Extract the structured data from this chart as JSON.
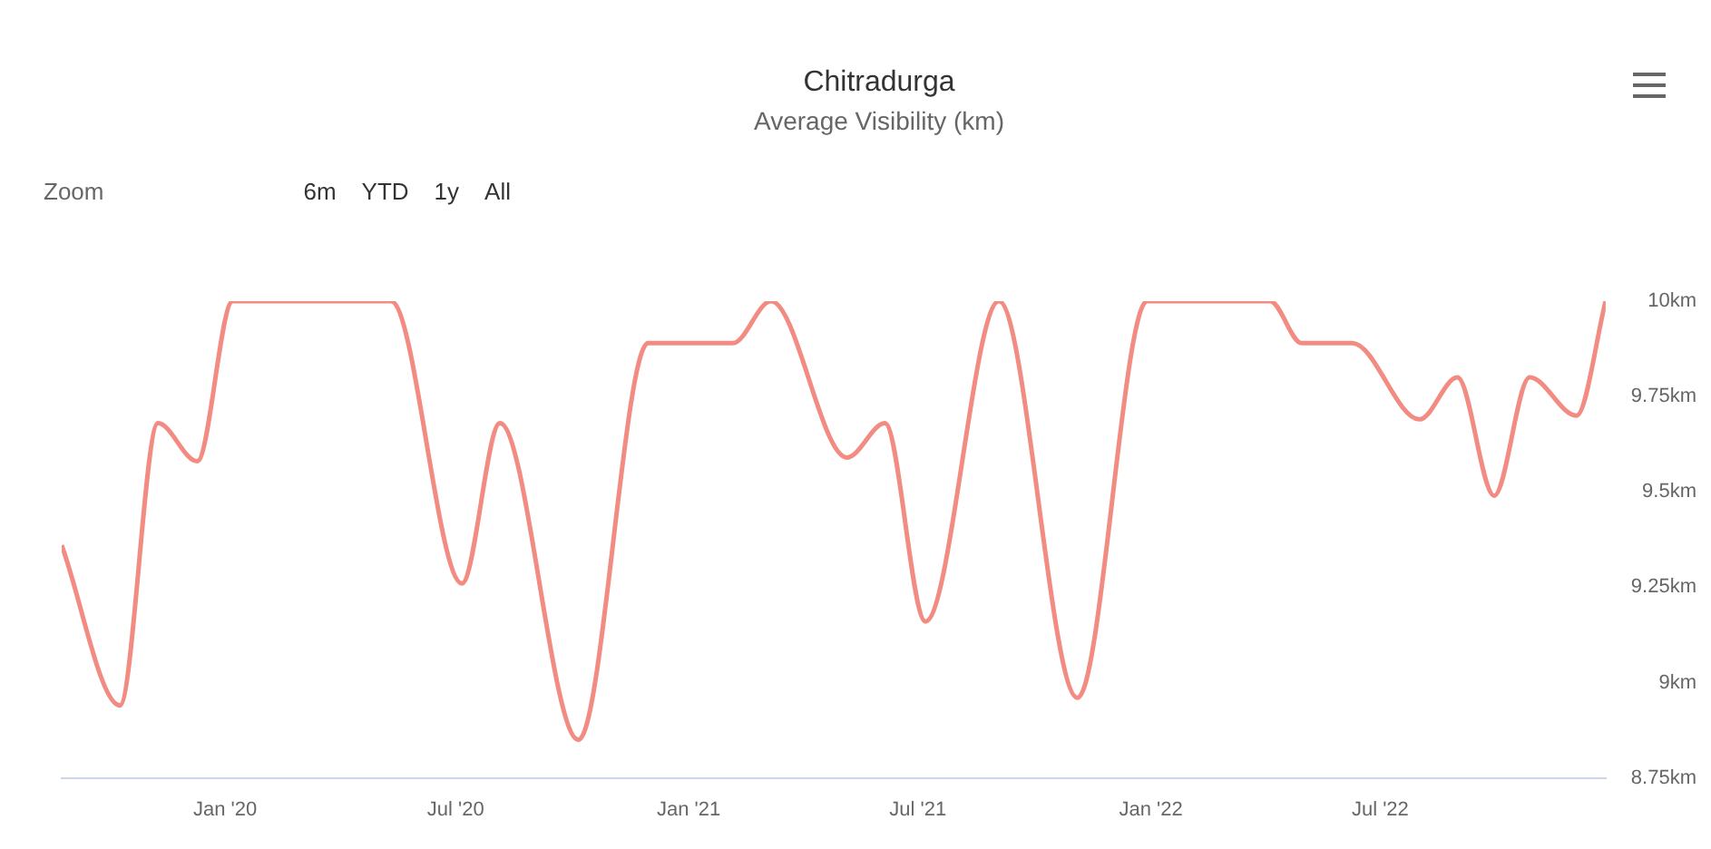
{
  "chart_data": {
    "type": "line",
    "title": "Chitradurga",
    "subtitle": "Average Visibility (km)",
    "annotations": [
      "Zoom",
      "6m",
      "YTD",
      "1y",
      "All"
    ],
    "x": [
      "2019-08-25",
      "2019-10-10",
      "2019-11-09",
      "2019-12-10",
      "2020-01-07",
      "2020-05-11",
      "2020-07-06",
      "2020-08-05",
      "2020-10-06",
      "2020-11-30",
      "2021-02-05",
      "2021-03-07",
      "2021-05-06",
      "2021-06-05",
      "2021-07-07",
      "2021-09-03",
      "2021-11-04",
      "2021-12-29",
      "2022-04-05",
      "2022-04-30",
      "2022-06-09",
      "2022-08-01",
      "2022-08-31",
      "2022-09-29",
      "2022-10-27",
      "2022-12-03",
      "2022-12-26"
    ],
    "series": [
      {
        "color": "#f28b82",
        "values": [
          9.36,
          8.94,
          9.68,
          9.58,
          10,
          10,
          9.26,
          9.68,
          8.85,
          9.89,
          9.89,
          10,
          9.59,
          9.68,
          9.16,
          10,
          8.96,
          10,
          10,
          9.89,
          9.89,
          9.69,
          9.8,
          9.49,
          9.8,
          9.7,
          10
        ]
      }
    ],
    "xticks": [
      {
        "value": "2020-01",
        "label": "Jan '20"
      },
      {
        "value": "2020-07",
        "label": "Jul '20"
      },
      {
        "value": "2021-01",
        "label": "Jan '21"
      },
      {
        "value": "2021-07",
        "label": "Jul '21"
      },
      {
        "value": "2022-01",
        "label": "Jan '22"
      },
      {
        "value": "2022-07",
        "label": "Jul '22"
      }
    ],
    "xlim": [
      "2019-08-25",
      "2022-12-26"
    ],
    "ylim": [
      8.75,
      10
    ],
    "yticks": [
      {
        "value": 8.75,
        "label": "8.75km"
      },
      {
        "value": 9,
        "label": "9km"
      },
      {
        "value": 9.25,
        "label": "9.25km"
      },
      {
        "value": 9.5,
        "label": "9.5km"
      },
      {
        "value": 9.75,
        "label": "9.75km"
      },
      {
        "value": 10,
        "label": "10km"
      }
    ],
    "grid": false,
    "legend": false,
    "marker": "none",
    "line_style": "solid"
  }
}
